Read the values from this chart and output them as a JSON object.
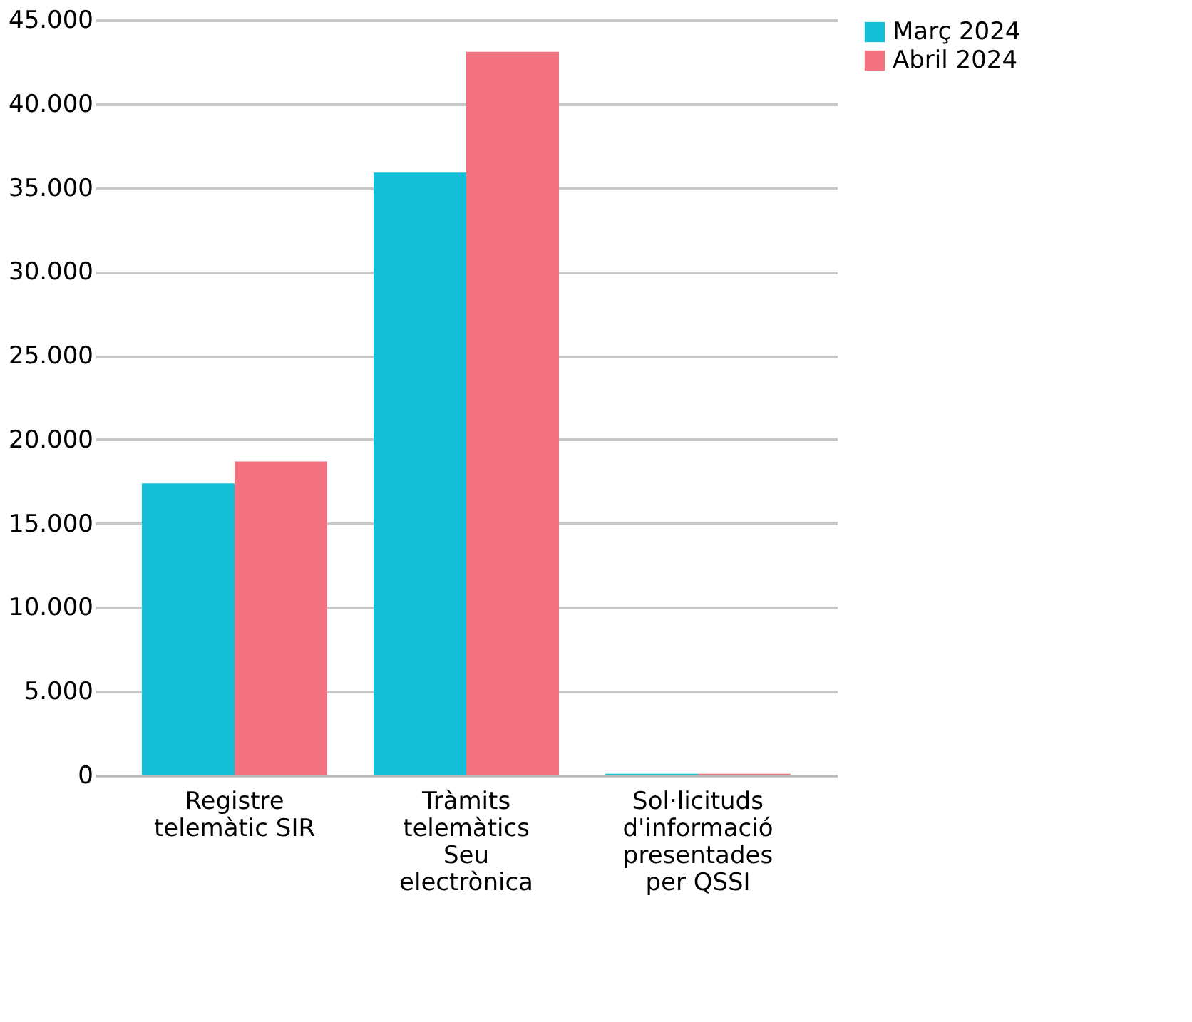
{
  "chart_data": {
    "type": "bar",
    "categories": [
      "Registre telemàtic SIR",
      "Tràmits telemàtics Seu electrònica",
      "Sol·licituds d'informació presentades per QSSI"
    ],
    "series": [
      {
        "name": "Març 2024",
        "color": "#12bfd6",
        "values": [
          17400,
          35900,
          100
        ]
      },
      {
        "name": "Abril 2024",
        "color": "#f4717f",
        "values": [
          18700,
          43100,
          100
        ]
      }
    ],
    "ylim": [
      0,
      45000
    ],
    "yticks": [
      0,
      {
        "value": 5000,
        "label": "5.000"
      },
      {
        "value": 10000,
        "label": "10.000"
      },
      {
        "value": 15000,
        "label": "15.000"
      },
      {
        "value": 20000,
        "label": "20.000"
      },
      {
        "value": 25000,
        "label": "25.000"
      },
      {
        "value": 30000,
        "label": "30.000"
      },
      {
        "value": 35000,
        "label": "35.000"
      },
      {
        "value": 40000,
        "label": "40.000"
      },
      {
        "value": 45000,
        "label": "45.000"
      }
    ],
    "grid": "y",
    "legend": "right"
  }
}
